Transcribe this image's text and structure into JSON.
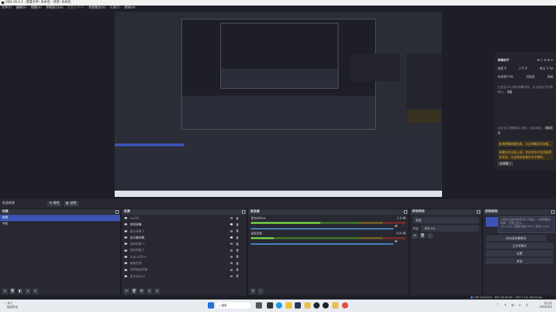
{
  "window": {
    "title": "OBS 29.1.2 - 配置文件: 未命名 - 场景: 未命名"
  },
  "menu": [
    "文件(F)",
    "编辑(E)",
    "视图(V)",
    "停靠窗口(D)",
    "配置文件(P)",
    "场景集合(S)",
    "工具(T)",
    "帮助(H)"
  ],
  "chat": {
    "title": "弹幕助手",
    "stats": [
      "热度 0",
      "人气 0",
      "关注 1.7w"
    ],
    "tabs": [
      "在线用户(0)",
      "活跃度",
      "贴粉"
    ],
    "msg1": "这里显示礼物和弹幕消息，双击图标可切换模式。",
    "badge1": "0条",
    "msg2": "这里显示弹幕提示消息，连续绑定。",
    "badge2": "0条/0人",
    "hl1": "新增弹幕提醒功能，点击弹幕即可查看。",
    "hl2": "直播任务全新上线，完成任务平台奖励更多权益，点击按钮查看任务详情吧。",
    "more": "去查看 ›"
  },
  "controls_bar": {
    "no_source": "未选择源",
    "properties": "属性",
    "filters": "滤镜"
  },
  "scenes": {
    "title": "场景",
    "items": [
      {
        "label": "场景",
        "selected": true
      },
      {
        "label": "手机",
        "selected": false
      }
    ]
  },
  "sources": {
    "title": "来源",
    "items": [
      {
        "label": "live2d",
        "visible": false,
        "icon": "game-capture-icon"
      },
      {
        "label": "游戏采集",
        "visible": true,
        "icon": "game-capture-icon"
      },
      {
        "label": "窗口采集 2",
        "visible": false,
        "icon": "window-icon"
      },
      {
        "label": "显示器采集",
        "visible": true,
        "icon": "monitor-icon"
      },
      {
        "label": "游戏采集 3",
        "visible": false,
        "icon": "game-capture-icon"
      },
      {
        "label": "游戏采集 2",
        "visible": false,
        "icon": "game-capture-icon"
      },
      {
        "label": "文本 (GDI+)",
        "visible": false,
        "icon": "text-icon"
      },
      {
        "label": "电脑音频",
        "visible": false,
        "icon": "window-icon"
      },
      {
        "label": "音频输出采集",
        "visible": false,
        "icon": "speaker-icon"
      },
      {
        "label": "麦克风/Aux",
        "visible": false,
        "icon": "microphone-icon"
      }
    ]
  },
  "mixer": {
    "title": "混音器",
    "channels": [
      {
        "name": "麦克风/Aux",
        "db": "1.4 dB",
        "level": 0.45
      },
      {
        "name": "桌面音频",
        "db": "-0.0 dB",
        "level": 0.15
      }
    ]
  },
  "transitions": {
    "title": "转场特效",
    "type": "渐变",
    "duration_label": "时长",
    "duration": "300 ms"
  },
  "controls": {
    "title": "控制按钮",
    "tooltip": "以您显示器的帧率进行了输出，以获得最佳效果，可禁止显示。",
    "tooltip2": "CPU 20%  可能影响帧  FPS 5  丢帧 0.00%",
    "buttons": [
      "启动虚拟摄像机",
      "工作室模式",
      "设置",
      "退出"
    ]
  },
  "status": {
    "live": "LIVE 00:00:00",
    "rec": "REC 00:00:00",
    "cpu": "CPU 1.1%, 60.00 fps"
  },
  "taskbar": {
    "weather_temp": "9°C",
    "weather_desc": "局部多云",
    "search": "搜索",
    "time": "22:05",
    "date": "2024/4/4"
  },
  "colors": {
    "accent": "#3b54b5",
    "bg": "#1e1f26",
    "panel": "#272831"
  }
}
